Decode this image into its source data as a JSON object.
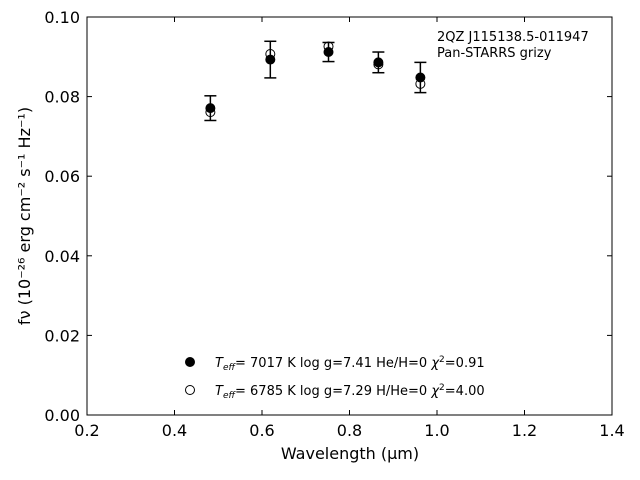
{
  "chart_data": {
    "type": "scatter",
    "xlabel": "Wavelength (μm)",
    "ylabel": "fν (10⁻²⁶ erg cm⁻² s⁻¹ Hz⁻¹)",
    "xlim": [
      0.2,
      1.4
    ],
    "ylim": [
      0.0,
      0.1
    ],
    "xticks": [
      "0.2",
      "0.4",
      "0.6",
      "0.8",
      "1.0",
      "1.2",
      "1.4"
    ],
    "yticks": [
      "0.00",
      "0.02",
      "0.04",
      "0.06",
      "0.08",
      "0.10"
    ],
    "annotation": {
      "line1": "2QZ J115138.5-011947",
      "line2": "Pan-STARRS grizy"
    },
    "observed": {
      "x": [
        0.482,
        0.619,
        0.752,
        0.866,
        0.962
      ],
      "y": [
        0.0771,
        0.0893,
        0.0912,
        0.0886,
        0.0848
      ],
      "yerr": [
        0.0031,
        0.0046,
        0.0024,
        0.0026,
        0.0038
      ]
    },
    "series": [
      {
        "name": "Teff= 7017 K log g=7.41 He/H=0 χ2=0.91",
        "marker": "filled-circle",
        "x": [
          0.482,
          0.619,
          0.752,
          0.866,
          0.962
        ],
        "y": [
          0.0771,
          0.0893,
          0.0912,
          0.0886,
          0.0848
        ]
      },
      {
        "name": "Teff= 6785 K log g=7.29 H/He=0 χ2=4.00",
        "marker": "open-circle",
        "x": [
          0.482,
          0.619,
          0.752,
          0.866,
          0.962
        ],
        "y": [
          0.0761,
          0.0907,
          0.0926,
          0.0881,
          0.0832
        ]
      }
    ],
    "legend": {
      "position": "lower-center",
      "entries": [
        {
          "teff": "7017 K",
          "logg": "log g=7.41",
          "comp": "He/H=0",
          "chi2": "=0.91"
        },
        {
          "teff": "6785 K",
          "logg": "log g=7.29",
          "comp": "H/He=0",
          "chi2": "=4.00"
        }
      ]
    },
    "grid": false
  }
}
